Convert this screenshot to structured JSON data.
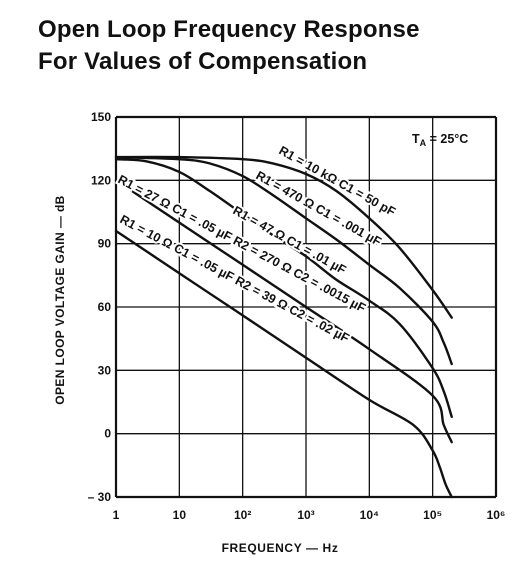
{
  "chart_data": {
    "type": "line",
    "title": "Open Loop Frequency Response",
    "subtitle": "For Values of Compensation",
    "xlabel": "FREQUENCY — Hz",
    "ylabel": "OPEN LOOP VOLTAGE GAIN — dB",
    "x_scale": "log",
    "xlim": [
      1,
      1000000
    ],
    "ylim": [
      -30,
      150
    ],
    "x_ticks": [
      1,
      10,
      100,
      1000,
      10000,
      100000,
      1000000
    ],
    "x_tick_labels": [
      "1",
      "10",
      "10²",
      "10³",
      "10⁴",
      "10⁵",
      "10⁶"
    ],
    "y_ticks": [
      -30,
      0,
      30,
      60,
      90,
      120,
      150
    ],
    "y_tick_labels": [
      "– 30",
      "0",
      "30",
      "60",
      "90",
      "120",
      "150"
    ],
    "grid": true,
    "annotation": "TA = 25°C",
    "series": [
      {
        "name": "R1 = 10 kΩ C1 = 50 pF",
        "x": [
          1,
          10,
          100,
          300,
          1000,
          3000,
          10000,
          30000,
          100000,
          200000
        ],
        "y": [
          131,
          131,
          130,
          128,
          123,
          115,
          102,
          88,
          68,
          55
        ]
      },
      {
        "name": "R1 = 470 Ω C1 = .001 µF",
        "x": [
          1,
          10,
          30,
          100,
          300,
          1000,
          3000,
          10000,
          30000,
          100000,
          150000,
          200000
        ],
        "y": [
          131,
          130,
          128,
          122,
          113,
          102,
          92,
          80,
          69,
          53,
          43,
          33
        ]
      },
      {
        "name": "R1 = 47 Ω C1 = .01 µF",
        "x": [
          1,
          3,
          10,
          30,
          100,
          300,
          1000,
          3000,
          10000,
          30000,
          100000,
          150000,
          200000
        ],
        "y": [
          130,
          129,
          124,
          115,
          104,
          94,
          84,
          73,
          63,
          52,
          31,
          20,
          8
        ]
      },
      {
        "name": "R1 = 27 Ω C1 = .05 µF R2 = 270 Ω C2 = .0015 µF",
        "x": [
          1,
          10,
          100,
          1000,
          10000,
          100000,
          150000,
          200000
        ],
        "y": [
          120,
          100,
          80,
          60,
          40,
          18,
          4,
          -4
        ]
      },
      {
        "name": "R1 = 10 Ω C1 = .05 µF R2 = 39 Ω C2 = .02 µF",
        "x": [
          1,
          10,
          100,
          1000,
          10000,
          50000,
          100000,
          130000,
          160000,
          200000
        ],
        "y": [
          96,
          76,
          56,
          36,
          16,
          4,
          -8,
          -16,
          -24,
          -30
        ]
      }
    ],
    "legend": "curve labels along lines"
  }
}
